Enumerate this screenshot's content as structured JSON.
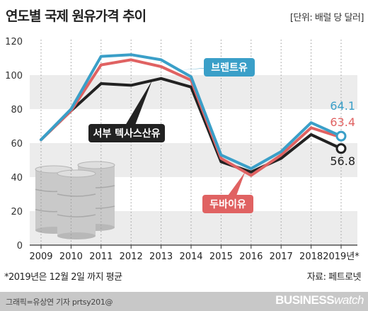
{
  "header": {
    "title": "연도별 국제 원유가격 추이",
    "unit": "[단위: 배럴 당 달러]"
  },
  "footer": {
    "footnote": "*2019년은 12월 2일 까지 평균",
    "source": "자료: 페트로넷",
    "credit": "그래픽=유상연 기자 prtsy201@",
    "brand_bold": "BUSINESS",
    "brand_light": "watch"
  },
  "chart_data": {
    "type": "line",
    "title": "연도별 국제 원유가격 추이",
    "ylabel": "",
    "xlabel": "",
    "ylim": [
      0,
      120
    ],
    "yticks": [
      0,
      20,
      40,
      60,
      80,
      100,
      120
    ],
    "x": [
      "2009",
      "2010",
      "2011",
      "2012",
      "2013",
      "2014",
      "2015",
      "2016",
      "2017",
      "2018",
      "2019년*"
    ],
    "grid": "horizontal bands",
    "series": [
      {
        "name": "브렌트유",
        "color": "#3a9fc8",
        "values": [
          62,
          80,
          111,
          112,
          109,
          99,
          53,
          45,
          55,
          72,
          64.1
        ],
        "end_label": "64.1"
      },
      {
        "name": "두바이유",
        "color": "#e06262",
        "values": [
          62,
          79,
          106,
          109,
          105,
          97,
          51,
          41,
          53,
          69,
          63.4
        ],
        "end_label": "63.4"
      },
      {
        "name": "서부 텍사스산유",
        "color": "#222222",
        "values": [
          62,
          79,
          95,
          94,
          98,
          93,
          49,
          43,
          51,
          65,
          56.8
        ],
        "end_label": "56.8"
      }
    ]
  }
}
